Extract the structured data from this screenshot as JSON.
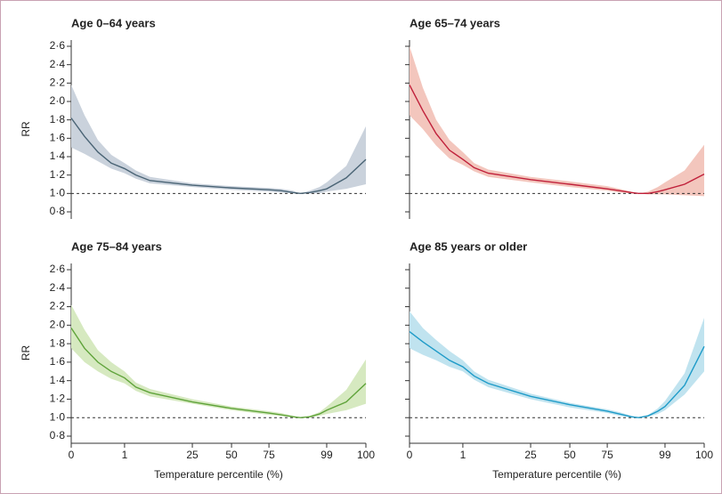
{
  "chart_data": [
    {
      "type": "line",
      "title": "Age 0–64 years",
      "ylabel": "RR",
      "x": [
        0,
        0.25,
        0.5,
        0.75,
        1,
        5,
        10,
        25,
        50,
        75,
        80,
        85,
        88,
        92,
        96,
        99,
        99.5,
        100
      ],
      "values": [
        1.82,
        1.62,
        1.45,
        1.33,
        1.27,
        1.2,
        1.14,
        1.09,
        1.06,
        1.04,
        1.03,
        1.01,
        1.0,
        1.01,
        1.03,
        1.05,
        1.17,
        1.37
      ],
      "lower": [
        1.5,
        1.43,
        1.35,
        1.27,
        1.22,
        1.16,
        1.11,
        1.07,
        1.04,
        1.02,
        1.01,
        1.0,
        1.0,
        1.0,
        1.0,
        1.02,
        1.05,
        1.1
      ],
      "upper": [
        2.18,
        1.85,
        1.58,
        1.42,
        1.33,
        1.25,
        1.18,
        1.11,
        1.08,
        1.06,
        1.05,
        1.03,
        1.0,
        1.03,
        1.07,
        1.12,
        1.3,
        1.73
      ],
      "color": "#4a6475",
      "band_color": "#cad2dc",
      "hline": 1,
      "xlim": [
        0,
        100
      ],
      "xticks": [
        0,
        1,
        25,
        50,
        75,
        99,
        100
      ],
      "show_xticks": false,
      "ylim": [
        0.8,
        2.6
      ],
      "yticks": [
        {
          "value": 0.8,
          "label": "0·8"
        },
        {
          "value": 1.0,
          "label": "1·0"
        },
        {
          "value": 1.2,
          "label": "1·2"
        },
        {
          "value": 1.4,
          "label": "1·4"
        },
        {
          "value": 1.6,
          "label": "1·6"
        },
        {
          "value": 1.8,
          "label": "1·8"
        },
        {
          "value": 2.0,
          "label": "2·0"
        },
        {
          "value": 2.2,
          "label": "2·2"
        },
        {
          "value": 2.4,
          "label": "2·4"
        },
        {
          "value": 2.6,
          "label": "2·6"
        }
      ]
    },
    {
      "type": "line",
      "title": "Age 65–74 years",
      "x": [
        0,
        0.25,
        0.5,
        0.75,
        1,
        5,
        10,
        25,
        50,
        75,
        80,
        85,
        88,
        92,
        96,
        99,
        99.5,
        100
      ],
      "values": [
        2.18,
        1.9,
        1.65,
        1.47,
        1.37,
        1.28,
        1.22,
        1.15,
        1.1,
        1.05,
        1.03,
        1.01,
        1.0,
        1.0,
        1.02,
        1.04,
        1.1,
        1.21
      ],
      "lower": [
        1.85,
        1.7,
        1.52,
        1.38,
        1.31,
        1.24,
        1.18,
        1.12,
        1.07,
        1.03,
        1.01,
        1.0,
        1.0,
        0.99,
        0.99,
        0.99,
        0.98,
        0.97
      ],
      "upper": [
        2.6,
        2.15,
        1.8,
        1.58,
        1.45,
        1.33,
        1.26,
        1.18,
        1.13,
        1.08,
        1.05,
        1.02,
        1.0,
        1.02,
        1.07,
        1.12,
        1.25,
        1.53
      ],
      "color": "#c0203a",
      "band_color": "#f3c6bd",
      "hline": 1,
      "xlim": [
        0,
        100
      ],
      "xticks": [
        0,
        1,
        25,
        50,
        75,
        99,
        100
      ],
      "show_xticks": false,
      "ylim": [
        0.8,
        2.6
      ],
      "yticks": [
        0.8,
        1.0,
        1.2,
        1.4,
        1.6,
        1.8,
        2.0,
        2.2,
        2.4,
        2.6
      ],
      "show_ytick_labels": false
    },
    {
      "type": "line",
      "title": "Age 75–84 years",
      "ylabel": "RR",
      "xlabel": "Temperature percentile (%)",
      "x": [
        0,
        0.25,
        0.5,
        0.75,
        1,
        5,
        10,
        25,
        50,
        75,
        80,
        85,
        88,
        92,
        96,
        99,
        99.5,
        100
      ],
      "values": [
        1.97,
        1.75,
        1.6,
        1.5,
        1.43,
        1.33,
        1.27,
        1.17,
        1.1,
        1.05,
        1.03,
        1.01,
        1.0,
        1.01,
        1.04,
        1.08,
        1.17,
        1.37
      ],
      "lower": [
        1.75,
        1.6,
        1.5,
        1.42,
        1.37,
        1.29,
        1.23,
        1.15,
        1.08,
        1.03,
        1.02,
        1.0,
        1.0,
        1.0,
        1.02,
        1.04,
        1.08,
        1.15
      ],
      "upper": [
        2.22,
        1.95,
        1.73,
        1.6,
        1.5,
        1.38,
        1.31,
        1.2,
        1.12,
        1.07,
        1.05,
        1.02,
        1.0,
        1.02,
        1.06,
        1.12,
        1.3,
        1.63
      ],
      "color": "#5fa33a",
      "band_color": "#d6e9c0",
      "hline": 1,
      "xlim": [
        0,
        100
      ],
      "xticks": [
        0,
        1,
        25,
        50,
        75,
        99,
        100
      ],
      "show_xticks": true,
      "ylim": [
        0.8,
        2.6
      ],
      "yticks": [
        {
          "value": 0.8,
          "label": "0·8"
        },
        {
          "value": 1.0,
          "label": "1·0"
        },
        {
          "value": 1.2,
          "label": "1·2"
        },
        {
          "value": 1.4,
          "label": "1·4"
        },
        {
          "value": 1.6,
          "label": "1·6"
        },
        {
          "value": 1.8,
          "label": "1·8"
        },
        {
          "value": 2.0,
          "label": "2·0"
        },
        {
          "value": 2.2,
          "label": "2·2"
        },
        {
          "value": 2.4,
          "label": "2·4"
        },
        {
          "value": 2.6,
          "label": "2·6"
        }
      ]
    },
    {
      "type": "line",
      "title": "Age 85 years or older",
      "xlabel": "Temperature percentile (%)",
      "x": [
        0,
        0.25,
        0.5,
        0.75,
        1,
        5,
        10,
        25,
        50,
        75,
        80,
        85,
        88,
        92,
        96,
        99,
        99.5,
        100
      ],
      "values": [
        1.93,
        1.82,
        1.72,
        1.62,
        1.55,
        1.45,
        1.37,
        1.23,
        1.14,
        1.07,
        1.04,
        1.01,
        1.0,
        1.02,
        1.07,
        1.12,
        1.35,
        1.77
      ],
      "lower": [
        1.75,
        1.68,
        1.62,
        1.55,
        1.5,
        1.41,
        1.33,
        1.2,
        1.11,
        1.05,
        1.02,
        1.0,
        1.0,
        1.01,
        1.04,
        1.08,
        1.25,
        1.5
      ],
      "upper": [
        2.15,
        1.97,
        1.84,
        1.72,
        1.62,
        1.5,
        1.41,
        1.26,
        1.16,
        1.09,
        1.06,
        1.02,
        1.0,
        1.03,
        1.1,
        1.18,
        1.48,
        2.08
      ],
      "color": "#1e9bc8",
      "band_color": "#c0e3ef",
      "hline": 1,
      "xlim": [
        0,
        100
      ],
      "xticks": [
        0,
        1,
        25,
        50,
        75,
        99,
        100
      ],
      "show_xticks": true,
      "ylim": [
        0.8,
        2.6
      ],
      "yticks": [
        0.8,
        1.0,
        1.2,
        1.4,
        1.6,
        1.8,
        2.0,
        2.2,
        2.4,
        2.6
      ],
      "show_ytick_labels": false
    }
  ]
}
